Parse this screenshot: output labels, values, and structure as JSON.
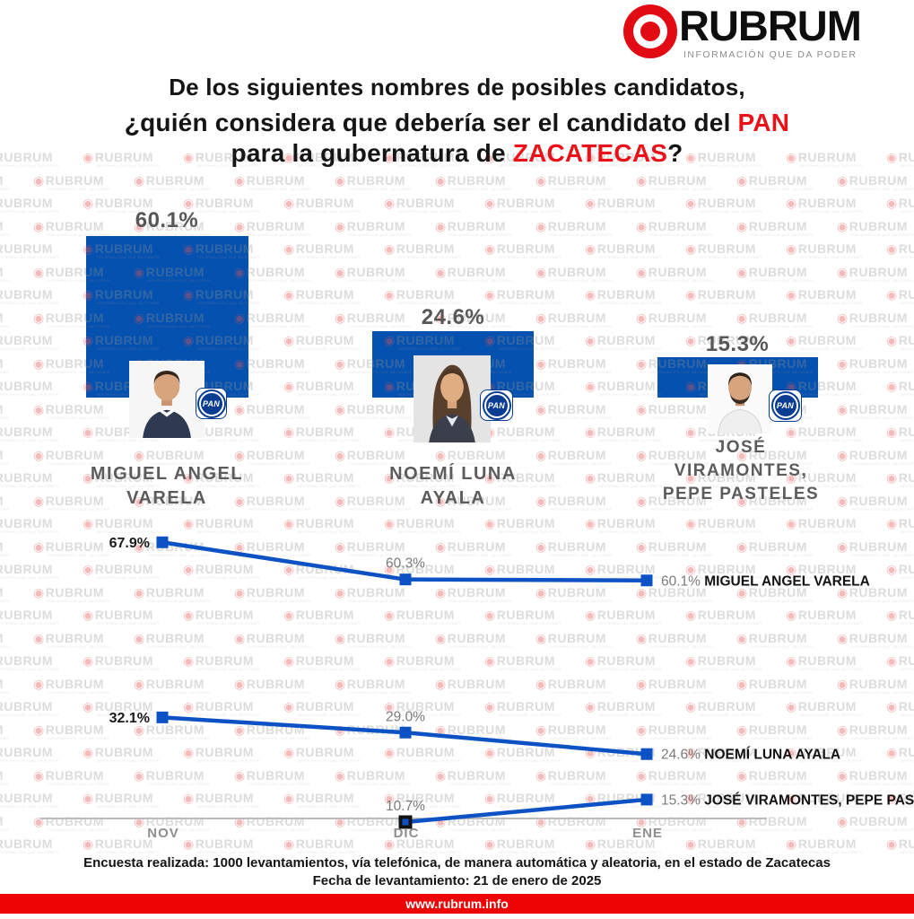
{
  "brand": {
    "name": "RUBRUM",
    "tagline": "INFORMACIÓN QUE DA PODER",
    "logo_red": "#e30b13"
  },
  "title": {
    "line1": "De los siguientes nombres de posibles candidatos,",
    "line2_text": "¿quién considera que debería ser el candidato del ",
    "line2_red": "PAN",
    "line3_text": "para la gubernatura de ",
    "line3_red": "ZACATECAS",
    "line3_end": "?"
  },
  "pan_logo_text": "PAN",
  "bar_chart": {
    "bar_color": "#0551af",
    "bars": [
      {
        "name_lines": [
          "MIGUEL ANGEL",
          "VARELA"
        ]
      },
      {
        "name_lines": [
          "NOEMÍ LUNA",
          "AYALA"
        ]
      },
      {
        "name_lines": [
          "JOSÉ",
          "VIRAMONTES,",
          "PEPE PASTELES"
        ]
      }
    ]
  },
  "footer": {
    "line1": "Encuesta realizada: 1000 levantamientos, vía telefónica, de manera automática y aleatoria, en el estado de Zacatecas",
    "line2": "Fecha de levantamiento: 21 de enero de 2025",
    "website": "www.rubrum.info"
  },
  "chart_data": [
    {
      "type": "bar",
      "title": "¿Quién considera que debería ser el candidato del PAN para la gubernatura de Zacatecas?",
      "categories": [
        "MIGUEL ANGEL VARELA",
        "NOEMÍ LUNA AYALA",
        "JOSÉ VIRAMONTES, PEPE PASTELES"
      ],
      "values": [
        60.1,
        24.6,
        15.3
      ],
      "value_labels": [
        "60.1%",
        "24.6%",
        "15.3%"
      ],
      "unit": "%",
      "bar_color": "#0551af"
    },
    {
      "type": "line",
      "x": [
        "NOV",
        "DIC",
        "ENE"
      ],
      "unit": "%",
      "line_color": "#0d52c4",
      "series": [
        {
          "name": "MIGUEL ANGEL VARELA",
          "values": [
            67.9,
            60.3,
            60.1
          ],
          "value_labels": [
            "67.9%",
            "60.3%",
            "60.1%"
          ]
        },
        {
          "name": "NOEMÍ LUNA AYALA",
          "values": [
            32.1,
            29.0,
            24.6
          ],
          "value_labels": [
            "32.1%",
            "29.0%",
            "24.6%"
          ]
        },
        {
          "name": "JOSÉ VIRAMONTES, PEPE PASTELES",
          "values": [
            null,
            10.7,
            15.3
          ],
          "value_labels": [
            null,
            "10.7%",
            "15.3%"
          ]
        }
      ]
    }
  ]
}
